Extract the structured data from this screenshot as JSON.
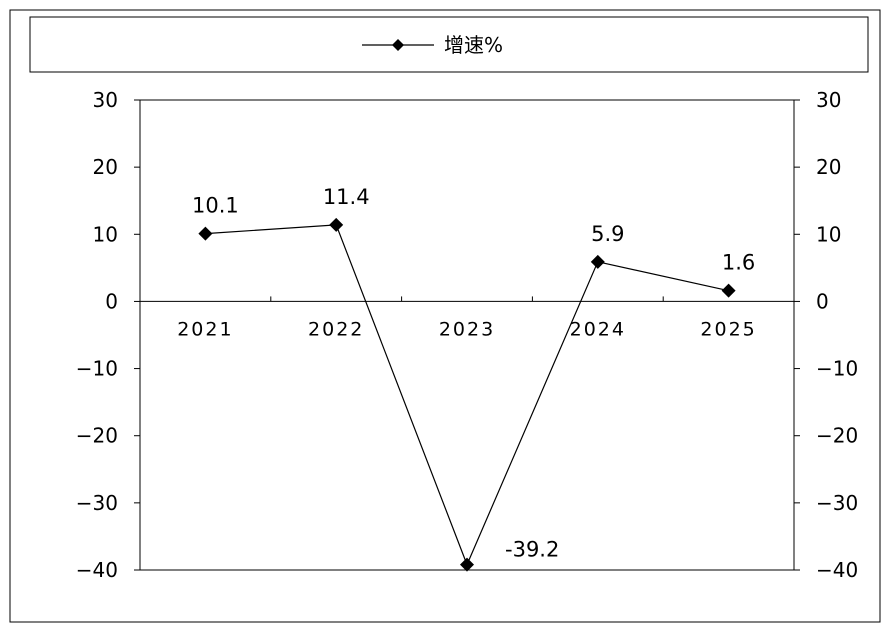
{
  "chart_data": {
    "type": "line",
    "title": "",
    "xlabel": "",
    "ylabel": "",
    "categories": [
      "2021",
      "2022",
      "2023",
      "2024",
      "2025"
    ],
    "series": [
      {
        "name": "增速%",
        "values": [
          10.1,
          11.4,
          -39.2,
          5.9,
          1.6
        ]
      }
    ],
    "data_labels": [
      "10.1",
      "11.4",
      "-39.2",
      "5.9",
      "1.6"
    ],
    "ylim": [
      -40,
      30
    ],
    "yticks": [
      30,
      20,
      10,
      0,
      -10,
      -20,
      -30,
      -40
    ],
    "secondary_axis": true,
    "grid": false,
    "legend_position": "top",
    "marker": "diamond",
    "line_color": "#000000"
  }
}
